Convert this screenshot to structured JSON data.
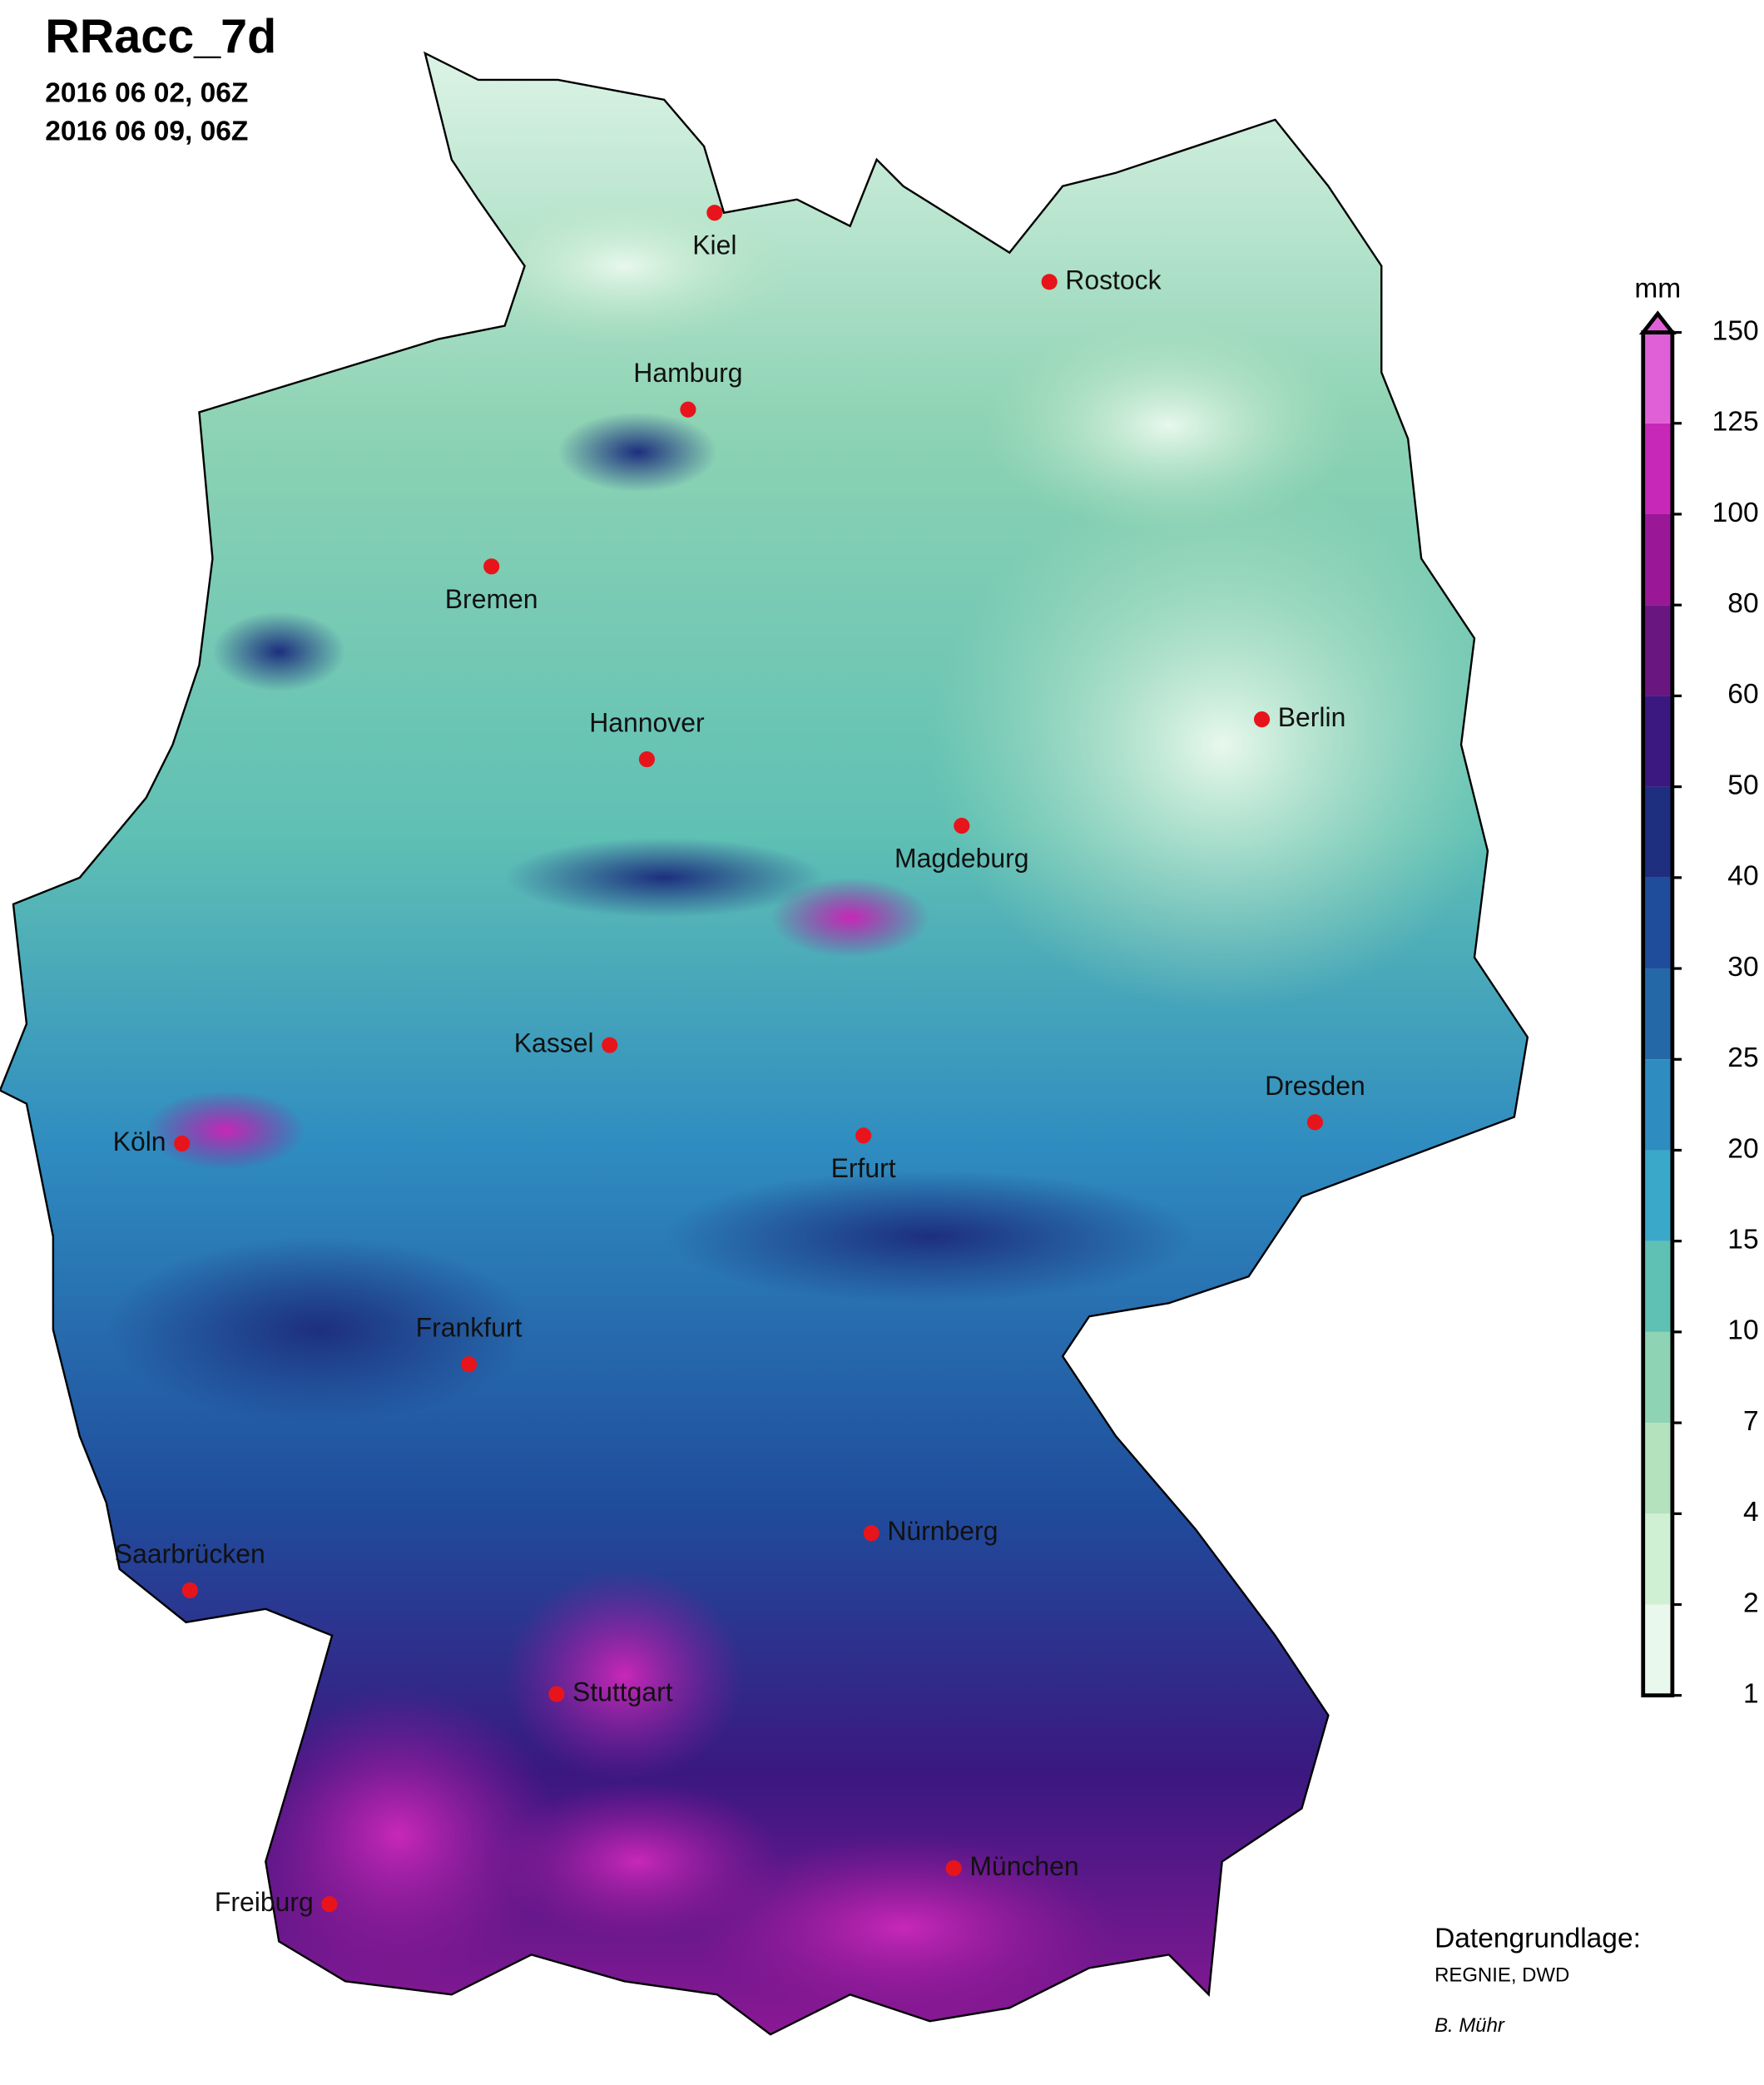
{
  "header": {
    "title": "RRacc_7d",
    "start": "2016 06 02, 06Z",
    "end": "2016 06 09, 06Z"
  },
  "cities": [
    {
      "name": "Kiel"
    },
    {
      "name": "Rostock"
    },
    {
      "name": "Hamburg"
    },
    {
      "name": "Bremen"
    },
    {
      "name": "Hannover"
    },
    {
      "name": "Berlin"
    },
    {
      "name": "Magdeburg"
    },
    {
      "name": "Kassel"
    },
    {
      "name": "Köln"
    },
    {
      "name": "Erfurt"
    },
    {
      "name": "Dresden"
    },
    {
      "name": "Frankfurt"
    },
    {
      "name": "Nürnberg"
    },
    {
      "name": "Saarbrücken"
    },
    {
      "name": "Stuttgart"
    },
    {
      "name": "Freiburg"
    },
    {
      "name": "München"
    }
  ],
  "legend": {
    "unit": "mm",
    "levels": [
      1,
      2,
      4,
      7,
      10,
      15,
      20,
      25,
      30,
      40,
      50,
      60,
      80,
      100,
      125,
      150
    ],
    "colors": [
      "#e8f8ec",
      "#d0f0d4",
      "#b3e2bd",
      "#8ed3b4",
      "#5fc0b4",
      "#3aa8c8",
      "#2f8cc0",
      "#2568a8",
      "#1f4d9c",
      "#1d2f7e",
      "#3a1880",
      "#6a1680",
      "#9a1898",
      "#c828b8",
      "#e060d8"
    ]
  },
  "credits": {
    "source_label": "Datengrundlage:",
    "source": "REGNIE, DWD",
    "author": "B. Mühr"
  }
}
